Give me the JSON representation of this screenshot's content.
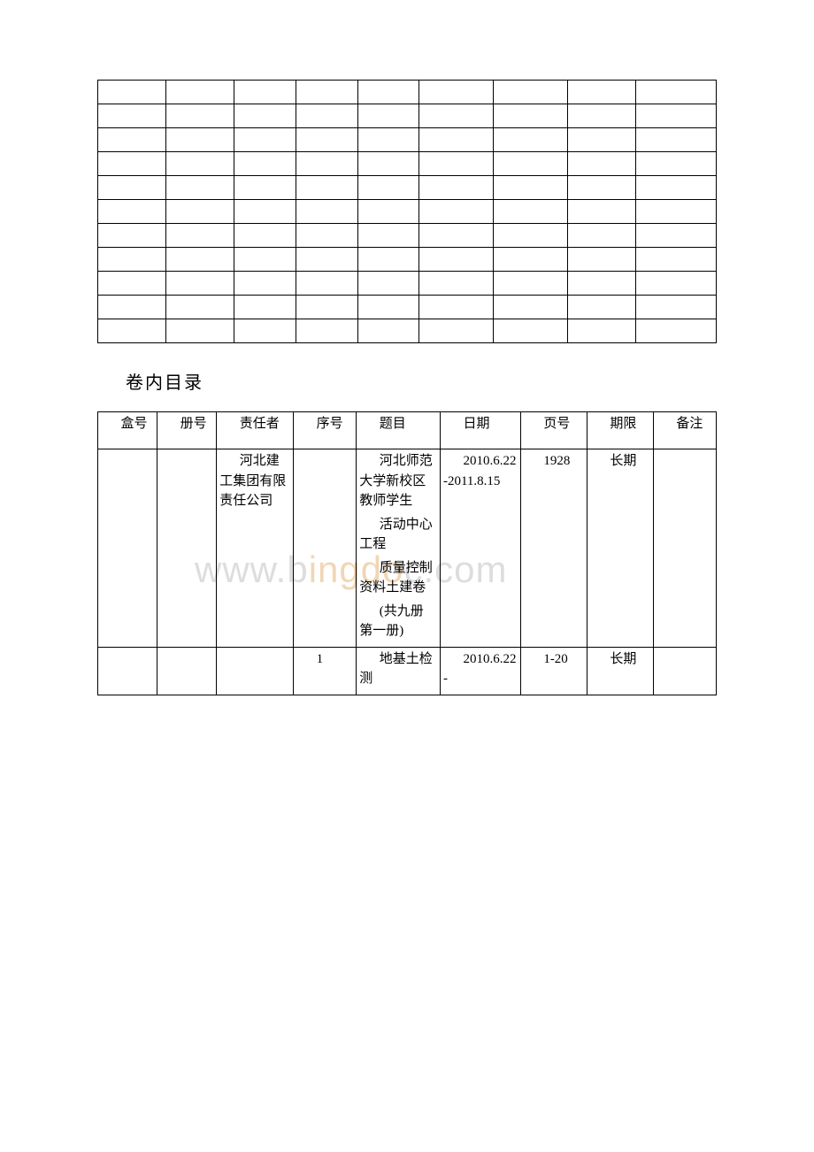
{
  "watermark": "www.bingdoc.com",
  "section_title": "卷内目录",
  "table1": {
    "rows": 11,
    "cols": 9
  },
  "table2": {
    "headers": [
      "盒号",
      "册号",
      "责任者",
      "序号",
      "题目",
      "日期",
      "页号",
      "期限",
      "备注"
    ],
    "rows": [
      {
        "box": "",
        "volume": "",
        "responsible": "河北建工集团有限责任公司",
        "seq": "",
        "title_parts": [
          "河北师范大学新校区教师学生",
          "活动中心工程",
          "质量控制资料土建卷",
          "(共九册 第一册)"
        ],
        "date": "2010.6.22-2011.8.15",
        "page": "1928",
        "period": "长期",
        "remark": ""
      },
      {
        "box": "",
        "volume": "",
        "responsible": "",
        "seq": "1",
        "title_parts": [
          "地基土检测"
        ],
        "date": "2010.6.22-",
        "page": "1-20",
        "period": "长期",
        "remark": ""
      }
    ]
  },
  "colors": {
    "border": "#000000",
    "text": "#000000",
    "background": "#ffffff",
    "watermark_gray": "rgba(180,180,180,0.45)",
    "watermark_orange": "rgba(230,180,120,0.55)"
  },
  "typography": {
    "body_font": "SimSun",
    "cell_fontsize": 15,
    "title_fontsize": 20
  }
}
